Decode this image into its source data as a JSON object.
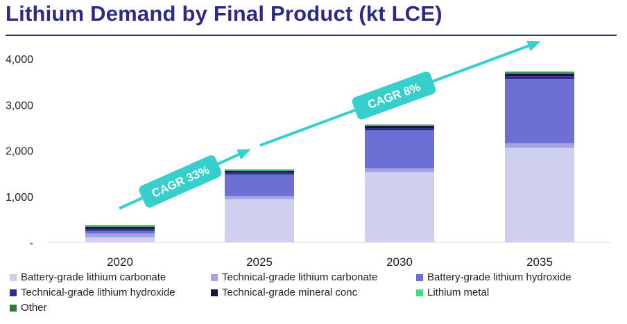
{
  "title": "Lithium Demand by Final Product (kt LCE)",
  "chart_data": {
    "type": "bar",
    "stacked": true,
    "categories": [
      "2020",
      "2025",
      "2030",
      "2035"
    ],
    "ylim": [
      0,
      4000
    ],
    "yticks": [
      {
        "value": 0,
        "label": "-"
      },
      {
        "value": 1000,
        "label": "1,000"
      },
      {
        "value": 2000,
        "label": "2,000"
      },
      {
        "value": 3000,
        "label": "3,000"
      },
      {
        "value": 4000,
        "label": "4,000"
      }
    ],
    "grid": false,
    "legend_position": "bottom",
    "series": [
      {
        "name": "Battery-grade lithium carbonate",
        "color": "#cfd0ef",
        "values": [
          110,
          940,
          1530,
          2060
        ]
      },
      {
        "name": "Technical-grade lithium carbonate",
        "color": "#a2a4e3",
        "values": [
          80,
          70,
          80,
          100
        ]
      },
      {
        "name": "Battery-grade lithium hydroxide",
        "color": "#6e6fd4",
        "values": [
          60,
          470,
          830,
          1400
        ]
      },
      {
        "name": "Technical-grade lithium hydroxide",
        "color": "#2d2d8f",
        "values": [
          40,
          40,
          50,
          60
        ]
      },
      {
        "name": "Technical-grade mineral conc",
        "color": "#151540",
        "values": [
          45,
          40,
          50,
          60
        ]
      },
      {
        "name": "Lithium metal",
        "color": "#3ee07e",
        "values": [
          10,
          15,
          15,
          20
        ]
      },
      {
        "name": "Other",
        "color": "#2f7d32",
        "values": [
          25,
          15,
          15,
          20
        ]
      }
    ],
    "annotations": [
      {
        "label": "CAGR 33%",
        "color": "#36cfcb"
      },
      {
        "label": "CAGR 8%",
        "color": "#36cfcb"
      }
    ]
  }
}
